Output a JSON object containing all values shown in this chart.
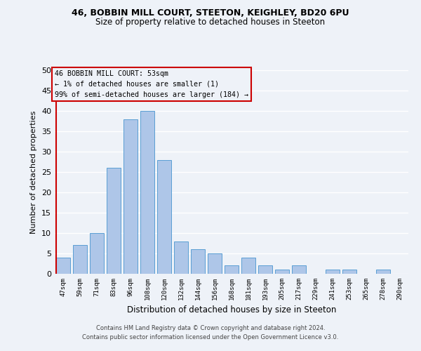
{
  "title1": "46, BOBBIN MILL COURT, STEETON, KEIGHLEY, BD20 6PU",
  "title2": "Size of property relative to detached houses in Steeton",
  "xlabel": "Distribution of detached houses by size in Steeton",
  "ylabel": "Number of detached properties",
  "bar_labels": [
    "47sqm",
    "59sqm",
    "71sqm",
    "83sqm",
    "96sqm",
    "108sqm",
    "120sqm",
    "132sqm",
    "144sqm",
    "156sqm",
    "168sqm",
    "181sqm",
    "193sqm",
    "205sqm",
    "217sqm",
    "229sqm",
    "241sqm",
    "253sqm",
    "265sqm",
    "278sqm",
    "290sqm"
  ],
  "bar_values": [
    4,
    7,
    10,
    26,
    38,
    40,
    28,
    8,
    6,
    5,
    2,
    4,
    2,
    1,
    2,
    0,
    1,
    1,
    0,
    1,
    0
  ],
  "bar_color": "#aec6e8",
  "bar_edge_color": "#5a9fd4",
  "highlight_color": "#cc0000",
  "annotation_lines": [
    "46 BOBBIN MILL COURT: 53sqm",
    "← 1% of detached houses are smaller (1)",
    "99% of semi-detached houses are larger (184) →"
  ],
  "annotation_box_color": "#cc0000",
  "ylim": [
    0,
    50
  ],
  "yticks": [
    0,
    5,
    10,
    15,
    20,
    25,
    30,
    35,
    40,
    45,
    50
  ],
  "footer1": "Contains HM Land Registry data © Crown copyright and database right 2024.",
  "footer2": "Contains public sector information licensed under the Open Government Licence v3.0.",
  "bg_color": "#eef2f8",
  "grid_color": "#ffffff"
}
